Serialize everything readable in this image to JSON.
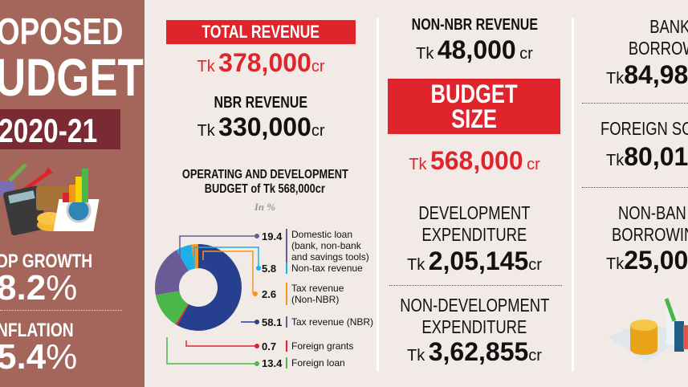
{
  "left_panel": {
    "title_line1": "OPOSED",
    "title_line2": "UDGET",
    "year": "2020-21",
    "gdp_label": "DP GROWTH",
    "gdp_value": "8.2",
    "inflation_label": "NFLATION",
    "inflation_value": "5.4",
    "percent": "%",
    "bg_color": "#a4665a",
    "year_bg_color": "#7a2a32"
  },
  "revenue": {
    "total_label": "TOTAL REVENUE",
    "tk": "Tk",
    "total_value": "378,000",
    "cr": "cr",
    "nbr_label": "NBR REVENUE",
    "nbr_value": "330,000"
  },
  "chart_title_line1": "OPERATING AND DEVELOPMENT",
  "chart_title_line2": "BUDGET of Tk 568,000cr",
  "chart_unit": "In %",
  "chart_data": {
    "type": "pie",
    "donut": true,
    "unit": "%",
    "slices": [
      {
        "label": "Tax revenue (NBR)",
        "value": 58.1,
        "color": "#26408f"
      },
      {
        "label": "Foreign grants",
        "value": 0.7,
        "color": "#e0242b"
      },
      {
        "label": "Foreign loan",
        "value": 13.4,
        "color": "#4bb748"
      },
      {
        "label": "Domestic loan (bank, non-bank and savings tools)",
        "value": 19.4,
        "color": "#6a5a96"
      },
      {
        "label": "Non-tax revenue",
        "value": 5.8,
        "color": "#1cb0ea"
      },
      {
        "label": "Tax revenue (Non-NBR)",
        "value": 2.6,
        "color": "#f7941d"
      }
    ]
  },
  "legend": [
    {
      "value": "19.4",
      "lines": [
        "Domestic loan",
        "(bank, non-bank",
        "and savings tools)"
      ]
    },
    {
      "value": "5.8",
      "lines": [
        "Non-tax revenue"
      ]
    },
    {
      "value": "2.6",
      "lines": [
        "Tax revenue",
        "(Non-NBR)"
      ]
    },
    {
      "value": "58.1",
      "lines": [
        "Tax revenue (NBR)"
      ]
    },
    {
      "value": "0.7",
      "lines": [
        "Foreign grants"
      ]
    },
    {
      "value": "13.4",
      "lines": [
        "Foreign loan"
      ]
    }
  ],
  "middle": {
    "non_nbr_label": "NON-NBR REVENUE",
    "non_nbr_value": "48,000",
    "budget_size_line1": "BUDGET",
    "budget_size_line2": "SIZE",
    "budget_value": "568,000",
    "dev_line1": "DEVELOPMENT",
    "dev_line2": "EXPENDITURE",
    "dev_value": "2,05,145",
    "nondev_line1": "NON-DEVELOPMENT",
    "nondev_line2": "EXPENDITURE",
    "nondev_value": "3,62,855"
  },
  "right": {
    "bank_line1": "BANK",
    "bank_line2": "BORROWIN",
    "bank_value": "84,98",
    "foreign_label": "FOREIGN SOU",
    "foreign_value": "80,01",
    "nonbank_line1": "NON-BAN",
    "nonbank_line2": "BORROWIN",
    "nonbank_value": "25,00"
  },
  "accent_color": "#e0242b"
}
